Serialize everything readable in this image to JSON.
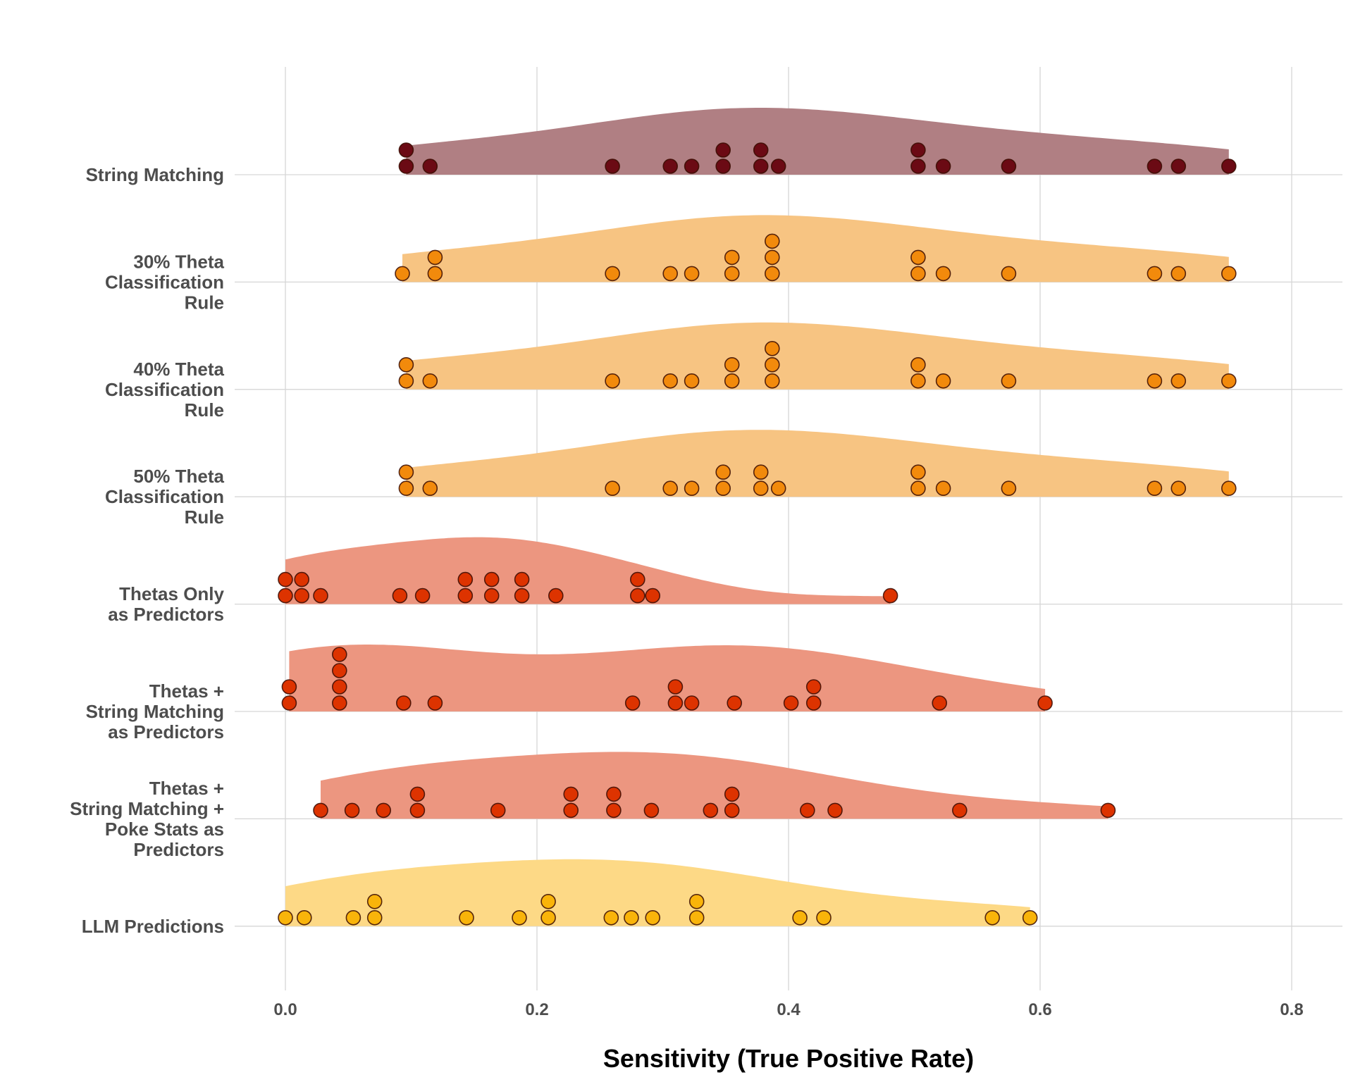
{
  "chart_data": {
    "type": "raincloud",
    "title": "",
    "xlabel": "Sensitivity (True Positive Rate)",
    "ylabel": "",
    "xlim": [
      -0.1,
      0.84
    ],
    "xticks": [
      0.0,
      0.2,
      0.4,
      0.6,
      0.8
    ],
    "xtick_labels": [
      "0.0",
      "0.2",
      "0.4",
      "0.6",
      "0.8"
    ],
    "grid": true,
    "legend": "none",
    "series": [
      {
        "name": "String Matching",
        "label_lines": [
          "String Matching"
        ],
        "point_color": "#6b0a14",
        "fill_color": "#b07f83",
        "values": [
          0.096,
          0.096,
          0.115,
          0.26,
          0.306,
          0.323,
          0.348,
          0.348,
          0.378,
          0.378,
          0.392,
          0.503,
          0.503,
          0.523,
          0.575,
          0.691,
          0.71,
          0.75
        ]
      },
      {
        "name": "30% Theta Classification Rule",
        "label_lines": [
          "30% Theta",
          "Classification",
          "Rule"
        ],
        "point_color": "#f28a0c",
        "fill_color": "#f7c482",
        "values": [
          0.093,
          0.119,
          0.119,
          0.26,
          0.306,
          0.323,
          0.355,
          0.355,
          0.387,
          0.387,
          0.387,
          0.503,
          0.503,
          0.523,
          0.575,
          0.691,
          0.71,
          0.75
        ]
      },
      {
        "name": "40% Theta Classification Rule",
        "label_lines": [
          "40% Theta",
          "Classification",
          "Rule"
        ],
        "point_color": "#f28a0c",
        "fill_color": "#f7c482",
        "values": [
          0.096,
          0.096,
          0.115,
          0.26,
          0.306,
          0.323,
          0.355,
          0.355,
          0.387,
          0.387,
          0.387,
          0.503,
          0.503,
          0.523,
          0.575,
          0.691,
          0.71,
          0.75
        ]
      },
      {
        "name": "50% Theta Classification Rule",
        "label_lines": [
          "50% Theta",
          "Classification",
          "Rule"
        ],
        "point_color": "#f28a0c",
        "fill_color": "#f7c482",
        "values": [
          0.096,
          0.096,
          0.115,
          0.26,
          0.306,
          0.323,
          0.348,
          0.348,
          0.378,
          0.378,
          0.392,
          0.503,
          0.503,
          0.523,
          0.575,
          0.691,
          0.71,
          0.75
        ]
      },
      {
        "name": "Thetas Only as Predictors",
        "label_lines": [
          "Thetas Only",
          "as Predictors"
        ],
        "point_color": "#dd3300",
        "fill_color": "#ec9680",
        "values": [
          0.0,
          0.0,
          0.013,
          0.013,
          0.028,
          0.091,
          0.109,
          0.143,
          0.143,
          0.164,
          0.164,
          0.188,
          0.188,
          0.215,
          0.28,
          0.28,
          0.292,
          0.481
        ]
      },
      {
        "name": "Thetas + String Matching as Predictors",
        "label_lines": [
          "Thetas +",
          "String Matching",
          "as Predictors"
        ],
        "point_color": "#dd3300",
        "fill_color": "#ec9680",
        "values": [
          0.003,
          0.003,
          0.043,
          0.043,
          0.043,
          0.043,
          0.094,
          0.119,
          0.276,
          0.31,
          0.31,
          0.323,
          0.357,
          0.402,
          0.42,
          0.42,
          0.52,
          0.604
        ]
      },
      {
        "name": "Thetas + String Matching + Poke Stats as Predictors",
        "label_lines": [
          "Thetas +",
          "String Matching +",
          "Poke Stats as",
          "Predictors"
        ],
        "point_color": "#dd3300",
        "fill_color": "#ec9680",
        "values": [
          0.028,
          0.053,
          0.078,
          0.105,
          0.105,
          0.169,
          0.227,
          0.227,
          0.261,
          0.261,
          0.291,
          0.338,
          0.355,
          0.355,
          0.415,
          0.437,
          0.536,
          0.654
        ]
      },
      {
        "name": "LLM Predictions",
        "label_lines": [
          "LLM Predictions"
        ],
        "point_color": "#f9b40a",
        "fill_color": "#fdd986",
        "values": [
          0.0,
          0.015,
          0.054,
          0.071,
          0.071,
          0.144,
          0.186,
          0.209,
          0.209,
          0.259,
          0.275,
          0.292,
          0.327,
          0.327,
          0.409,
          0.428,
          0.562,
          0.592
        ]
      }
    ]
  }
}
